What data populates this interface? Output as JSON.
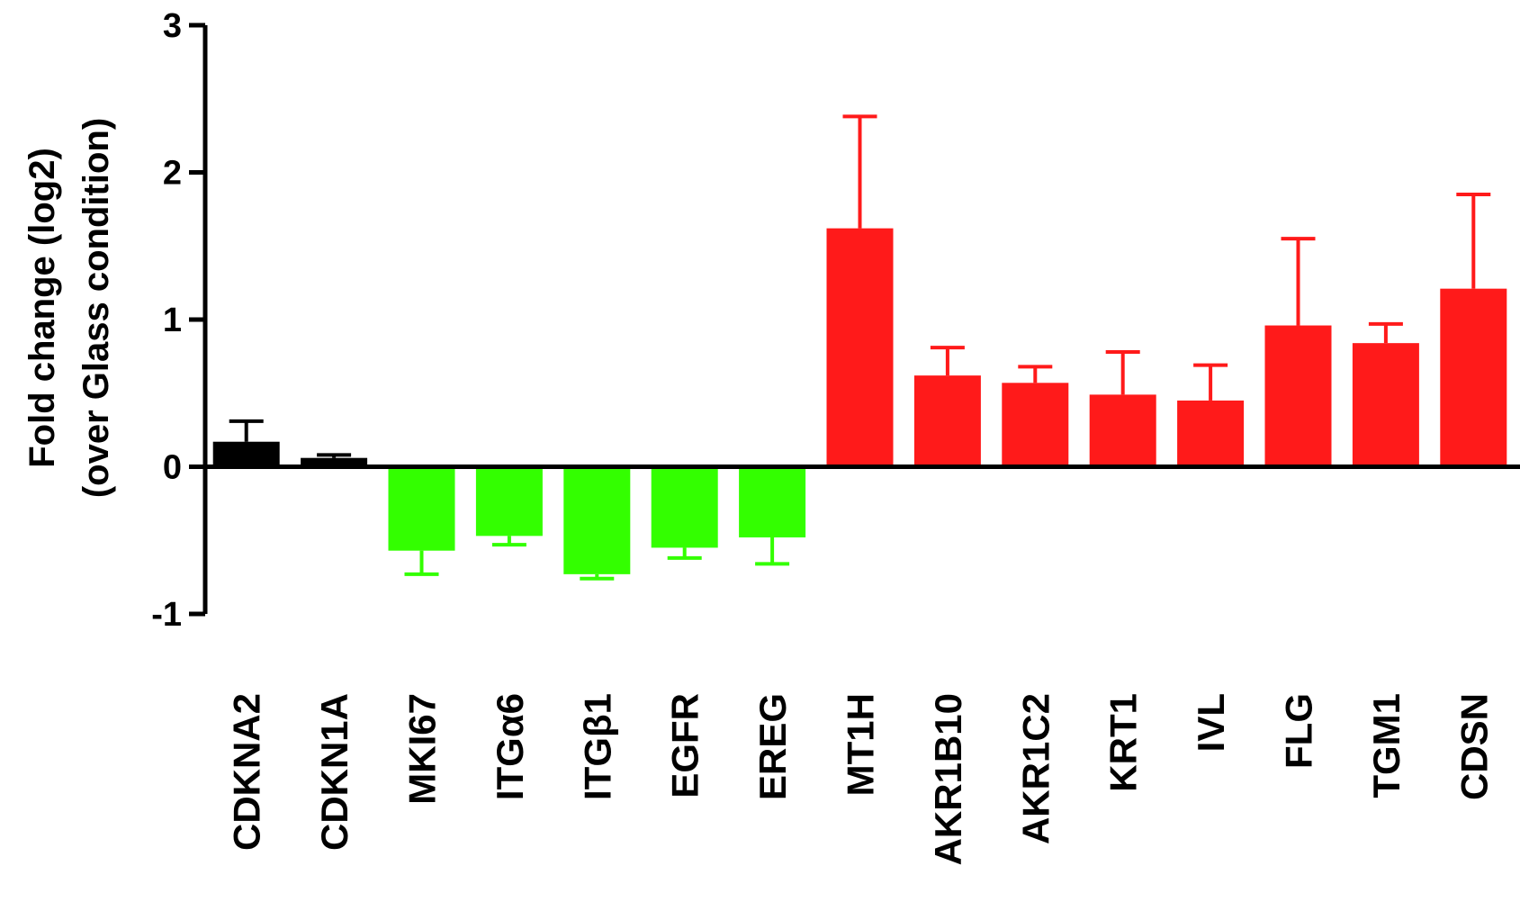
{
  "chart_data": {
    "type": "bar",
    "title": "",
    "ylabel_lines": [
      "Fold change (log2)",
      "(over Glass condition)"
    ],
    "xlabel": "",
    "ylim": [
      -1,
      3
    ],
    "yticks": [
      -1,
      0,
      1,
      2,
      3
    ],
    "ytick_labels": [
      "-1",
      "0",
      "1",
      "2",
      "3"
    ],
    "categories": [
      "CDKNA2",
      "CDKN1A",
      "MKI67",
      "ITGα6",
      "ITGβ1",
      "EGFR",
      "EREG",
      "MT1H",
      "AKR1B10",
      "AKR1C2",
      "KRT1",
      "IVL",
      "FLG",
      "TGM1",
      "CDSN"
    ],
    "values": [
      0.17,
      0.06,
      -0.57,
      -0.47,
      -0.73,
      -0.55,
      -0.48,
      1.62,
      0.62,
      0.57,
      0.49,
      0.45,
      0.96,
      0.84,
      1.21
    ],
    "error": [
      0.14,
      0.02,
      0.16,
      0.06,
      0.03,
      0.07,
      0.18,
      0.76,
      0.19,
      0.11,
      0.29,
      0.24,
      0.59,
      0.13,
      0.64
    ],
    "groups": [
      "black",
      "black",
      "green",
      "green",
      "green",
      "green",
      "green",
      "red",
      "red",
      "red",
      "red",
      "red",
      "red",
      "red",
      "red"
    ],
    "colors": {
      "black": "#000000",
      "green": "#33ff00",
      "red": "#ff1a1a"
    },
    "grid": false,
    "legend": "none"
  }
}
